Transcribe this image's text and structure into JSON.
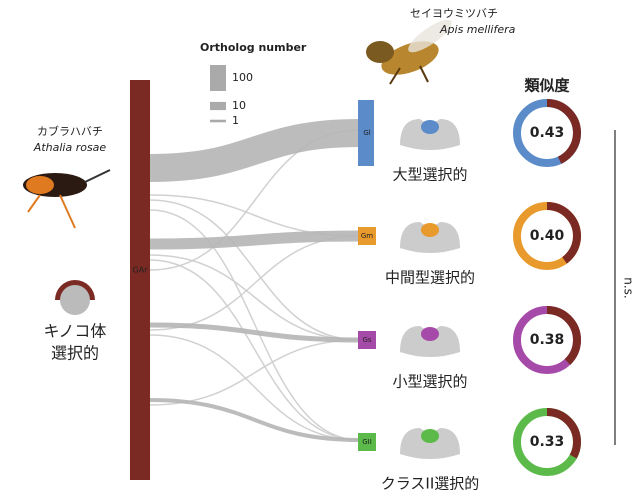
{
  "legend": {
    "title": "Ortholog number",
    "items": [
      100,
      10,
      1
    ]
  },
  "species": [
    {
      "name": "セイヨウミツバチ",
      "latin": "Apis mellifera"
    },
    {
      "name": "カブラハバチ",
      "latin": "Athalia rosae"
    }
  ],
  "source": {
    "gene": "GAr",
    "label": [
      "キノコ体",
      "選択的"
    ]
  },
  "similarity_title": "類似度",
  "nodes": [
    {
      "gene": "Gl",
      "label": "大型選択的",
      "similarity": 0.43
    },
    {
      "gene": "Gm",
      "label": "中間型選択的",
      "similarity": {
        "value": 0.4,
        "label": "0.40"
      }
    },
    {
      "gene": "Gs",
      "label": "小型選択的",
      "similarity": 0.38
    },
    {
      "gene": "GII",
      "label": "クラスII選択的",
      "similarity": 0.33
    }
  ],
  "significance": "n.s."
}
